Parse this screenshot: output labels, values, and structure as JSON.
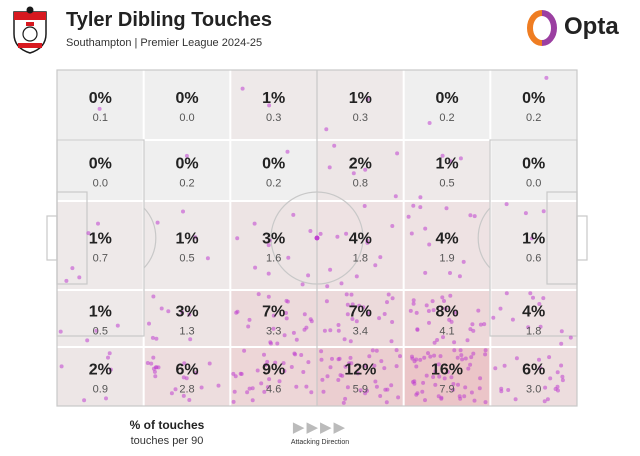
{
  "header": {
    "title": "Tyler Dibling Touches",
    "subtitle": "Southampton | Premier League 2024-25",
    "brand": "Opta"
  },
  "colors": {
    "accent_orange": "#ef7d22",
    "accent_purple": "#9b3fa1",
    "dot": "#c040d0",
    "heat_base": "#e8a9ad",
    "cell_neutral": "#efefef",
    "line": "#c8c8c8",
    "crest_red": "#d71920"
  },
  "icons": {
    "crest": "southampton-crest-icon",
    "brand": "opta-logo-icon",
    "arrow": "play-triangle-icon"
  },
  "chart_data": {
    "type": "heatmap",
    "title": "Tyler Dibling Touches",
    "subtitle": "Southampton | Premier League 2024-25",
    "legend": {
      "main": "% of touches",
      "sub": "touches per 90"
    },
    "direction_label": "Attacking Direction",
    "arrow_count": 4,
    "grid": {
      "rows": 5,
      "cols": 6,
      "cells": [
        [
          {
            "pct": "0%",
            "per90": "0.1"
          },
          {
            "pct": "0%",
            "per90": "0.0"
          },
          {
            "pct": "1%",
            "per90": "0.3"
          },
          {
            "pct": "1%",
            "per90": "0.3"
          },
          {
            "pct": "0%",
            "per90": "0.2"
          },
          {
            "pct": "0%",
            "per90": "0.2"
          }
        ],
        [
          {
            "pct": "0%",
            "per90": "0.0"
          },
          {
            "pct": "0%",
            "per90": "0.2"
          },
          {
            "pct": "0%",
            "per90": "0.2"
          },
          {
            "pct": "2%",
            "per90": "0.8"
          },
          {
            "pct": "1%",
            "per90": "0.5"
          },
          {
            "pct": "0%",
            "per90": "0.0"
          }
        ],
        [
          {
            "pct": "1%",
            "per90": "0.7"
          },
          {
            "pct": "1%",
            "per90": "0.5"
          },
          {
            "pct": "3%",
            "per90": "1.6"
          },
          {
            "pct": "4%",
            "per90": "1.8"
          },
          {
            "pct": "4%",
            "per90": "1.9"
          },
          {
            "pct": "1%",
            "per90": "0.6"
          }
        ],
        [
          {
            "pct": "1%",
            "per90": "0.5"
          },
          {
            "pct": "3%",
            "per90": "1.3"
          },
          {
            "pct": "7%",
            "per90": "3.3"
          },
          {
            "pct": "7%",
            "per90": "3.4"
          },
          {
            "pct": "8%",
            "per90": "4.1"
          },
          {
            "pct": "4%",
            "per90": "1.8"
          }
        ],
        [
          {
            "pct": "2%",
            "per90": "0.9"
          },
          {
            "pct": "6%",
            "per90": "2.8"
          },
          {
            "pct": "9%",
            "per90": "4.6"
          },
          {
            "pct": "12%",
            "per90": "5.9"
          },
          {
            "pct": "16%",
            "per90": "7.9"
          },
          {
            "pct": "6%",
            "per90": "3.0"
          }
        ]
      ]
    }
  }
}
